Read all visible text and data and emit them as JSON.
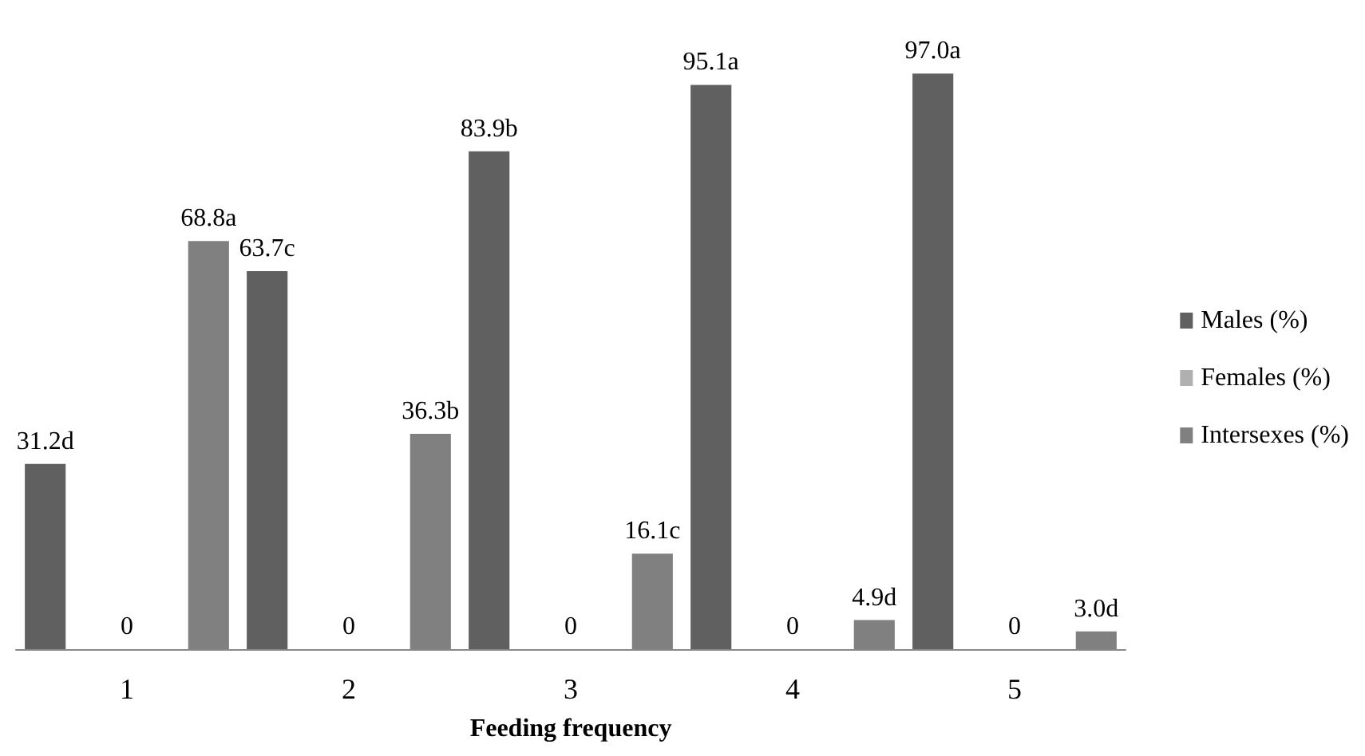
{
  "chart_data": {
    "type": "bar",
    "xlabel": "Feeding frequency",
    "categories": [
      "1",
      "2",
      "3",
      "4",
      "5"
    ],
    "series": [
      {
        "name": "Males (%)",
        "color": "#606060",
        "values": [
          31.2,
          63.7,
          83.9,
          95.1,
          97.0
        ],
        "value_labels": [
          "31.2d",
          "63.7c",
          "83.9b",
          "95.1a",
          "97.0a"
        ]
      },
      {
        "name": "Females (%)",
        "color": "#b0b0b0",
        "values": [
          0,
          0,
          0,
          0,
          0
        ],
        "value_labels": [
          "0",
          "0",
          "0",
          "0",
          "0"
        ]
      },
      {
        "name": "Intersexes (%)",
        "color": "#808080",
        "values": [
          68.8,
          36.3,
          16.1,
          4.9,
          3.0
        ],
        "value_labels": [
          "68.8a",
          "36.3b",
          "16.1c",
          "4.9d",
          "3.0d"
        ]
      }
    ],
    "legend": "right"
  }
}
